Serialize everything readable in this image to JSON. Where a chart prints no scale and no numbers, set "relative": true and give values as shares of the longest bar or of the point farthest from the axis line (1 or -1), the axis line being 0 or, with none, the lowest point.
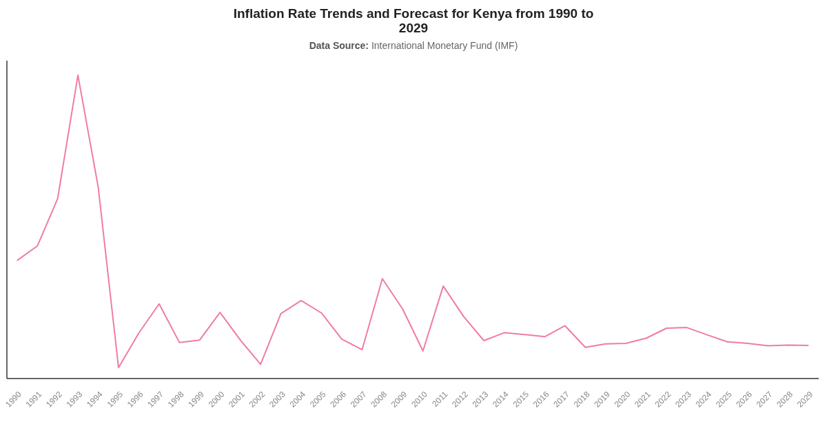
{
  "chart_data": {
    "type": "line",
    "title": "Inflation Rate Trends and Forecast for Kenya from 1990 to 2029",
    "subtitle": "Data Source: International Monetary Fund (IMF)",
    "categories": [
      "1990",
      "1991",
      "1992",
      "1993",
      "1994",
      "1995",
      "1996",
      "1997",
      "1998",
      "1999",
      "2000",
      "2001",
      "2002",
      "2003",
      "2004",
      "2005",
      "2006",
      "2007",
      "2008",
      "2009",
      "2010",
      "2011",
      "2012",
      "2013",
      "2014",
      "2015",
      "2016",
      "2017",
      "2018",
      "2019",
      "2020",
      "2021",
      "2022",
      "2023",
      "2024",
      "2025",
      "2026",
      "2027",
      "2028",
      "2029"
    ],
    "series": [
      {
        "color": "#f07ba6",
        "values": [
          0.389,
          0.437,
          0.593,
          1,
          0.631,
          0.036,
          0.15,
          0.246,
          0.119,
          0.127,
          0.218,
          0.127,
          0.047,
          0.214,
          0.257,
          0.216,
          0.13,
          0.095,
          0.329,
          0.229,
          0.091,
          0.305,
          0.205,
          0.125,
          0.151,
          0.145,
          0.138,
          0.174,
          0.103,
          0.114,
          0.116,
          0.133,
          0.166,
          0.168,
          0.144,
          0.121,
          0.116,
          0.108,
          0.11,
          0.109
        ]
      }
    ],
    "relative": true,
    "marker": "none",
    "line_style": "solid"
  }
}
